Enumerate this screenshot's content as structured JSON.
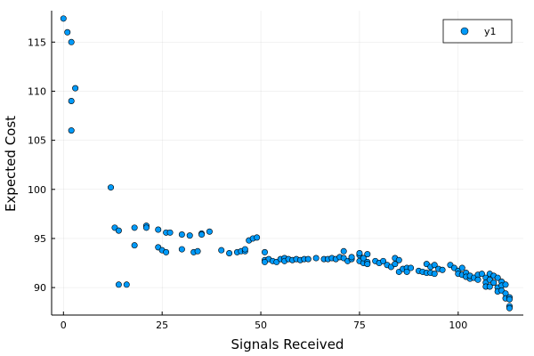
{
  "chart_data": {
    "type": "scatter",
    "title": "",
    "xlabel": "Signals Received",
    "ylabel": "Expected Cost",
    "xlim": [
      -3,
      116.5
    ],
    "ylim": [
      87.2,
      118.2
    ],
    "xticks": [
      0,
      25,
      50,
      75,
      100
    ],
    "yticks": [
      90,
      95,
      100,
      105,
      110,
      115
    ],
    "grid": true,
    "legend": {
      "position": "top-right",
      "entries": [
        "y1"
      ]
    },
    "series": [
      {
        "name": "y1",
        "color": "#009af9",
        "points": [
          [
            0,
            117.4
          ],
          [
            1,
            116.0
          ],
          [
            2,
            115.0
          ],
          [
            3,
            110.3
          ],
          [
            2,
            109.0
          ],
          [
            2,
            106.0
          ],
          [
            12,
            100.2
          ],
          [
            13,
            96.1
          ],
          [
            14,
            95.8
          ],
          [
            18,
            96.1
          ],
          [
            21,
            96.3
          ],
          [
            21,
            96.1
          ],
          [
            24,
            95.9
          ],
          [
            26,
            95.6
          ],
          [
            27,
            95.6
          ],
          [
            30,
            95.4
          ],
          [
            32,
            95.3
          ],
          [
            35,
            95.5
          ],
          [
            35,
            95.4
          ],
          [
            37,
            95.7
          ],
          [
            18,
            94.3
          ],
          [
            24,
            94.1
          ],
          [
            25,
            93.8
          ],
          [
            26,
            93.6
          ],
          [
            30,
            93.9
          ],
          [
            33,
            93.6
          ],
          [
            34,
            93.7
          ],
          [
            40,
            93.8
          ],
          [
            42,
            93.5
          ],
          [
            44,
            93.6
          ],
          [
            45,
            93.7
          ],
          [
            46,
            93.7
          ],
          [
            46,
            93.9
          ],
          [
            47,
            94.8
          ],
          [
            48,
            95.0
          ],
          [
            49,
            95.1
          ],
          [
            14,
            90.3
          ],
          [
            16,
            90.3
          ],
          [
            51,
            93.6
          ],
          [
            51,
            92.8
          ],
          [
            52,
            92.9
          ],
          [
            51,
            92.6
          ],
          [
            53,
            92.7
          ],
          [
            54,
            92.6
          ],
          [
            55,
            92.9
          ],
          [
            56,
            93.0
          ],
          [
            56,
            92.7
          ],
          [
            57,
            92.9
          ],
          [
            58,
            92.8
          ],
          [
            59,
            92.9
          ],
          [
            60,
            92.8
          ],
          [
            61,
            92.9
          ],
          [
            62,
            92.9
          ],
          [
            64,
            93.0
          ],
          [
            66,
            92.9
          ],
          [
            67,
            92.9
          ],
          [
            68,
            93.0
          ],
          [
            69,
            92.9
          ],
          [
            70,
            93.1
          ],
          [
            71,
            93.0
          ],
          [
            71,
            93.7
          ],
          [
            72,
            92.7
          ],
          [
            73,
            92.9
          ],
          [
            73,
            93.1
          ],
          [
            75,
            92.7
          ],
          [
            75,
            93.3
          ],
          [
            75,
            93.5
          ],
          [
            76,
            92.5
          ],
          [
            76,
            93.0
          ],
          [
            77,
            92.6
          ],
          [
            77,
            92.4
          ],
          [
            77,
            93.4
          ],
          [
            79,
            92.7
          ],
          [
            80,
            92.5
          ],
          [
            81,
            92.7
          ],
          [
            82,
            92.3
          ],
          [
            83,
            92.1
          ],
          [
            84,
            92.4
          ],
          [
            84,
            93.0
          ],
          [
            85,
            92.8
          ],
          [
            85,
            91.6
          ],
          [
            86,
            91.9
          ],
          [
            87,
            92.0
          ],
          [
            87,
            91.6
          ],
          [
            88,
            92.0
          ],
          [
            90,
            91.7
          ],
          [
            91,
            91.6
          ],
          [
            92,
            92.4
          ],
          [
            92,
            91.5
          ],
          [
            93,
            92.1
          ],
          [
            93,
            91.5
          ],
          [
            94,
            91.4
          ],
          [
            94,
            92.3
          ],
          [
            95,
            91.9
          ],
          [
            96,
            91.8
          ],
          [
            98,
            92.3
          ],
          [
            99,
            92.0
          ],
          [
            100,
            91.7
          ],
          [
            100,
            91.4
          ],
          [
            101,
            92.0
          ],
          [
            101,
            91.3
          ],
          [
            102,
            91.5
          ],
          [
            102,
            91.1
          ],
          [
            103,
            90.9
          ],
          [
            103,
            91.2
          ],
          [
            104,
            91.0
          ],
          [
            105,
            91.3
          ],
          [
            105,
            90.8
          ],
          [
            106,
            91.4
          ],
          [
            107,
            91.0
          ],
          [
            107,
            90.5
          ],
          [
            107,
            90.1
          ],
          [
            108,
            91.4
          ],
          [
            108,
            90.8
          ],
          [
            108,
            90.1
          ],
          [
            109,
            91.2
          ],
          [
            109,
            90.5
          ],
          [
            110,
            91.0
          ],
          [
            110,
            90.0
          ],
          [
            110,
            89.6
          ],
          [
            111,
            90.6
          ],
          [
            111,
            90.2
          ],
          [
            111,
            89.7
          ],
          [
            112,
            90.3
          ],
          [
            112,
            89.4
          ],
          [
            112,
            88.9
          ],
          [
            113,
            89.0
          ],
          [
            113,
            88.8
          ],
          [
            113,
            88.1
          ],
          [
            113,
            87.9
          ]
        ]
      }
    ]
  }
}
